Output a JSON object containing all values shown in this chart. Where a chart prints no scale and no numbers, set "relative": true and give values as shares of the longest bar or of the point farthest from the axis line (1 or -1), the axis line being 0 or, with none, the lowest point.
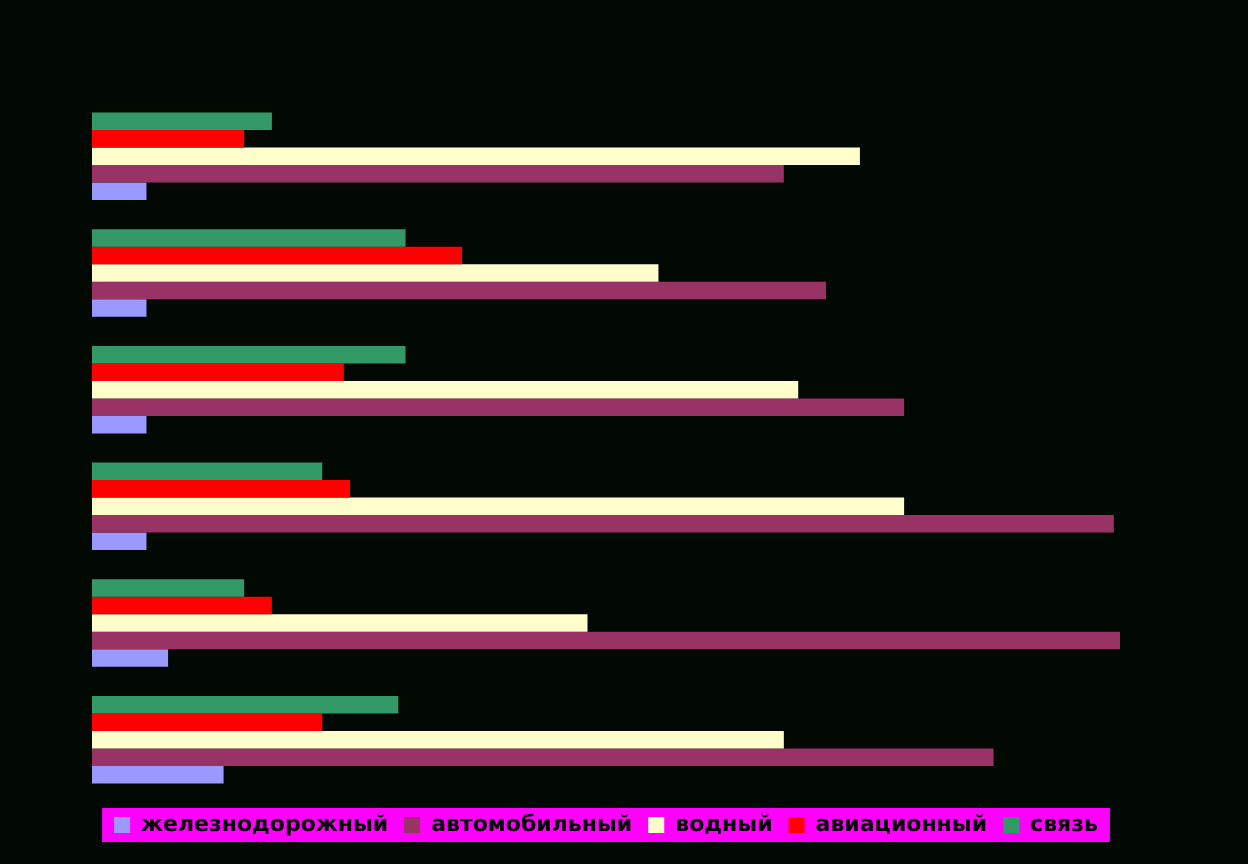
{
  "chart_data": {
    "type": "bar",
    "orientation": "horizontal",
    "relative": true,
    "legend": "bottom",
    "categories": [
      null,
      null,
      null,
      null,
      null,
      null
    ],
    "series": [
      {
        "name": "железнодорожный",
        "color": "#9999ff",
        "values": [
          0.053,
          0.053,
          0.053,
          0.053,
          0.074,
          0.128
        ]
      },
      {
        "name": "автомобильный",
        "color": "#993366",
        "values": [
          0.673,
          0.714,
          0.79,
          0.994,
          1,
          0.877
        ]
      },
      {
        "name": "водный",
        "color": "#ffffcc",
        "values": [
          0.747,
          0.551,
          0.687,
          0.79,
          0.482,
          0.673
        ]
      },
      {
        "name": "авиационный",
        "color": "#ff0000",
        "values": [
          0.148,
          0.36,
          0.245,
          0.251,
          0.175,
          0.224
        ]
      },
      {
        "name": "связь",
        "color": "#339966",
        "values": [
          0.175,
          0.305,
          0.305,
          0.224,
          0.148,
          0.298
        ]
      }
    ]
  }
}
